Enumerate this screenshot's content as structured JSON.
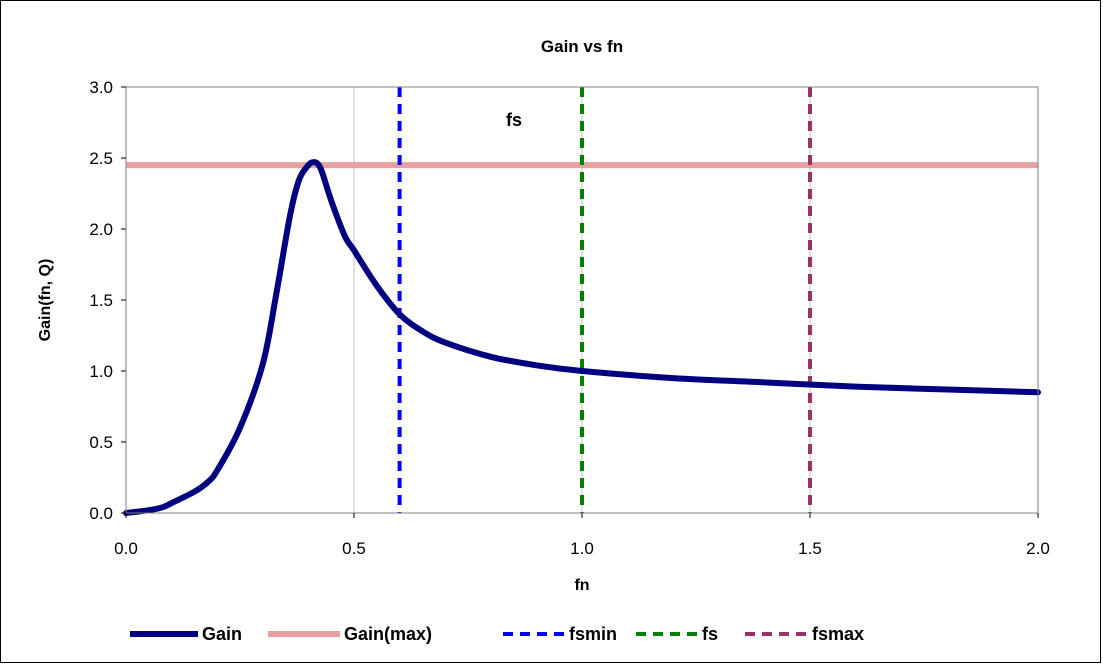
{
  "chart_data": {
    "type": "line",
    "title": "Gain vs fn",
    "xlabel": "fn",
    "ylabel": "Gain(fn, Q)",
    "xlim": [
      0,
      2
    ],
    "ylim": [
      0,
      3
    ],
    "x_ticks": [
      "0.0",
      "0.5",
      "1.0",
      "1.5",
      "2.0"
    ],
    "y_ticks": [
      "0.0",
      "0.5",
      "1.0",
      "1.5",
      "2.0",
      "2.5",
      "3.0"
    ],
    "annotation": "fs",
    "legend_position": "bottom",
    "grid": "vertical",
    "series": [
      {
        "name": "Gain",
        "color": "#000080",
        "style": "solid-thick",
        "x": [
          0,
          0.05,
          0.08,
          0.1,
          0.15,
          0.18,
          0.2,
          0.25,
          0.3,
          0.33,
          0.36,
          0.38,
          0.4,
          0.41,
          0.42,
          0.43,
          0.45,
          0.48,
          0.5,
          0.55,
          0.6,
          0.65,
          0.7,
          0.8,
          0.9,
          1.0,
          1.2,
          1.4,
          1.6,
          1.8,
          2.0
        ],
        "y": [
          0.0,
          0.02,
          0.04,
          0.07,
          0.15,
          0.22,
          0.3,
          0.6,
          1.05,
          1.55,
          2.1,
          2.35,
          2.45,
          2.47,
          2.46,
          2.4,
          2.2,
          1.95,
          1.85,
          1.6,
          1.4,
          1.28,
          1.2,
          1.1,
          1.04,
          1.0,
          0.95,
          0.92,
          0.89,
          0.87,
          0.85
        ]
      },
      {
        "name": "Gain(max)",
        "color": "#e8a0a0",
        "style": "hline",
        "y": 2.45
      },
      {
        "name": "fsmin",
        "color": "#0000ff",
        "style": "vline-dashed",
        "x": 0.6
      },
      {
        "name": "fs",
        "color": "#008000",
        "style": "vline-dashed",
        "x": 1.0
      },
      {
        "name": "fsmax",
        "color": "#993366",
        "style": "vline-dashed",
        "x": 1.5
      }
    ]
  }
}
